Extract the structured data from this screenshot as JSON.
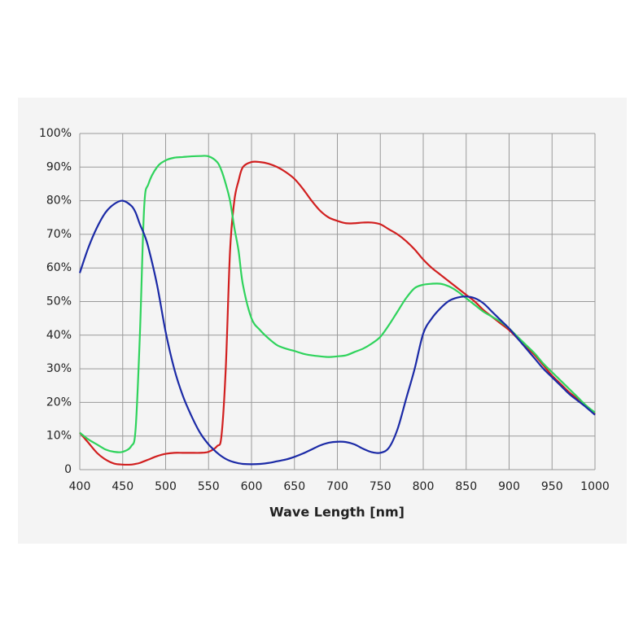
{
  "chart_data": {
    "type": "line",
    "xlabel": "Wave Length [nm]",
    "x": [
      400,
      410,
      420,
      430,
      440,
      450,
      460,
      465,
      470,
      475,
      480,
      490,
      500,
      510,
      520,
      530,
      540,
      550,
      560,
      565,
      570,
      575,
      580,
      585,
      590,
      600,
      610,
      620,
      630,
      640,
      650,
      660,
      670,
      680,
      690,
      700,
      710,
      720,
      730,
      740,
      750,
      760,
      770,
      780,
      790,
      800,
      810,
      820,
      830,
      840,
      850,
      860,
      870,
      880,
      890,
      900,
      910,
      920,
      930,
      940,
      950,
      960,
      970,
      980,
      990,
      1000
    ],
    "series": [
      {
        "color": "#d11f1f",
        "values": [
          11,
          8,
          5,
          3,
          1.8,
          1.5,
          1.5,
          1.7,
          2,
          2.5,
          3,
          4,
          4.7,
          5,
          5,
          5,
          5,
          5.3,
          7,
          10,
          30,
          65,
          80,
          86,
          90,
          91.5,
          91.5,
          91,
          90,
          88.5,
          86.5,
          83.5,
          80,
          77,
          75,
          74,
          73.3,
          73.3,
          73.5,
          73.5,
          73,
          71.5,
          70,
          68,
          65.5,
          62.5,
          60,
          58,
          56,
          54,
          52,
          50,
          47.5,
          45.5,
          43.5,
          41.5,
          39,
          36.5,
          34,
          31,
          28,
          25.5,
          23,
          21,
          19,
          16.5
        ]
      },
      {
        "color": "#2fd35c",
        "values": [
          11,
          9,
          7.5,
          6,
          5.3,
          5.3,
          7,
          12,
          40,
          78,
          85,
          90,
          92,
          92.8,
          93,
          93.2,
          93.3,
          93.2,
          91.5,
          89,
          85,
          80,
          72,
          65,
          55,
          45,
          41.5,
          39,
          37,
          36,
          35.3,
          34.5,
          34,
          33.7,
          33.5,
          33.7,
          34,
          35,
          36,
          37.5,
          39.5,
          43,
          47,
          51,
          54,
          55,
          55.3,
          55.3,
          54.5,
          53,
          51,
          49,
          47,
          45.5,
          44,
          42,
          39.5,
          37,
          34.5,
          31.5,
          29,
          26.5,
          24,
          21.5,
          19,
          17
        ]
      },
      {
        "color": "#1b2aa6",
        "values": [
          58.5,
          66,
          72,
          76.5,
          79,
          80,
          78.5,
          76.5,
          73,
          70,
          66,
          55,
          41,
          30,
          22,
          16,
          11,
          7.5,
          5,
          4,
          3.2,
          2.6,
          2.2,
          1.9,
          1.7,
          1.6,
          1.7,
          2,
          2.5,
          3,
          3.8,
          4.8,
          6,
          7.2,
          8,
          8.3,
          8.2,
          7.5,
          6.2,
          5.2,
          5,
          6.5,
          12,
          21,
          30,
          40.5,
          45,
          48,
          50.2,
          51.2,
          51.5,
          51,
          49.5,
          47,
          44.5,
          42,
          39,
          36,
          33,
          30,
          27.5,
          25,
          22.5,
          20.5,
          18.5,
          16.3
        ]
      }
    ],
    "xlim": [
      400,
      1000
    ],
    "xticks": [
      400,
      450,
      500,
      550,
      600,
      650,
      700,
      750,
      800,
      850,
      900,
      950,
      1000
    ],
    "ylim": [
      0,
      100
    ],
    "yticks": [
      0,
      {
        "value": 10,
        "label": "10%"
      },
      {
        "value": 20,
        "label": "20%"
      },
      {
        "value": 30,
        "label": "30%"
      },
      {
        "value": 40,
        "label": "40%"
      },
      {
        "value": 50,
        "label": "50%"
      },
      {
        "value": 60,
        "label": "60%"
      },
      {
        "value": 70,
        "label": "70%"
      },
      {
        "value": 80,
        "label": "80%"
      },
      {
        "value": 90,
        "label": "90%"
      },
      {
        "value": 100,
        "label": "100%"
      }
    ],
    "grid": true
  }
}
